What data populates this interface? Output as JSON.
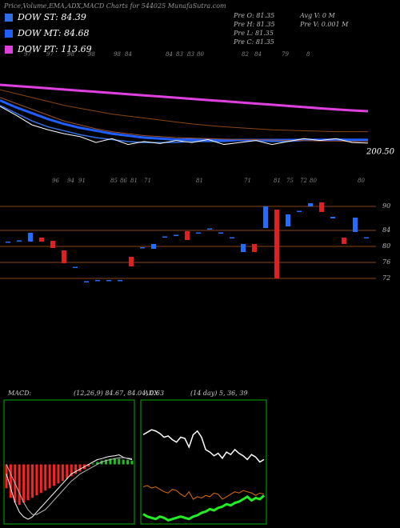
{
  "chart_data": [
    {
      "type": "line",
      "title": "Price,Volume,EMA,ADX,MACD Charts for 544025 MunafaSutra.com",
      "ylim": [
        60,
        150
      ],
      "series": [
        {
          "name": "DOW ST: 84.39",
          "color": "#2e6fe8",
          "width": 1.5,
          "values": [
            120,
            112,
            104,
            98,
            94,
            90,
            87,
            85,
            83,
            82,
            82,
            82,
            83,
            83,
            83,
            84,
            84,
            83,
            83,
            84,
            84,
            85,
            84,
            84.4
          ]
        },
        {
          "name": "DOW MT: 84.68",
          "color": "#1f5fff",
          "width": 3,
          "values": [
            125,
            118,
            112,
            106,
            101,
            97,
            94,
            91,
            89,
            87,
            86,
            85,
            85,
            84.5,
            84.5,
            84.5,
            84.5,
            84.5,
            84.5,
            84.7,
            84.8,
            84.9,
            84.8,
            84.7
          ]
        },
        {
          "name": "DOW PT: 113.69",
          "color": "#e040e0",
          "width": 3,
          "values": [
            141,
            139.8,
            138.6,
            137.4,
            136.2,
            135,
            133.8,
            132.6,
            131.4,
            130.2,
            129,
            127.8,
            126.6,
            125.4,
            124.2,
            123,
            121.8,
            120.6,
            119.4,
            118.2,
            117,
            115.8,
            114.8,
            114
          ]
        },
        {
          "color": "#8b4513",
          "width": 1,
          "values": [
            136,
            132,
            128,
            124,
            120,
            117,
            114,
            111,
            109,
            107,
            105,
            103,
            101,
            99.5,
            98,
            97,
            96,
            95,
            94.5,
            94,
            93.5,
            93,
            93,
            93
          ]
        },
        {
          "color": "#a0522d",
          "width": 1,
          "values": [
            128,
            122,
            116,
            110,
            104,
            100,
            96,
            93,
            91,
            89,
            88,
            87,
            86.5,
            86,
            85.5,
            85,
            85,
            84.5,
            84,
            84,
            83.5,
            83.5,
            83,
            83
          ]
        },
        {
          "color": "#ffffff",
          "width": 1,
          "values": [
            119,
            110,
            100,
            95,
            91,
            88,
            82,
            86,
            80,
            83,
            81,
            84,
            82,
            85,
            80,
            82,
            84,
            80,
            83,
            86,
            84,
            86,
            82,
            81.35
          ]
        }
      ],
      "info": [
        "Pre O: 81.35",
        "Pre H: 81.35",
        "Pre L: 81.35",
        "Pre C: 81.35",
        "Avg V: 0 M",
        "Pre V: 0.001 M"
      ],
      "price_label": "200.50",
      "date_labels": [
        "97",
        "97",
        "98",
        "98",
        "98",
        "84",
        "84",
        "83",
        "83",
        "80",
        "82",
        "84",
        "79",
        "8"
      ]
    },
    {
      "type": "candlestick",
      "up_color": "#1e6fff",
      "down_color": "#e02020",
      "grid": true,
      "grid_color": "#8b4513",
      "ylim": [
        68.6,
        95.2
      ],
      "yticks": [
        72,
        76,
        80,
        84,
        90
      ],
      "open": [
        81.2,
        81.2,
        81.2,
        82.2,
        81.4,
        79,
        74.8,
        71.2,
        71.6,
        71.6,
        71.6,
        77.4,
        79.6,
        79.4,
        82.3,
        82.7,
        83.8,
        83.3,
        84.3,
        83.3,
        82.1,
        78.6,
        80.6,
        84.6,
        89.2,
        85,
        88.7,
        90,
        91,
        87,
        82.2,
        83.6,
        82
      ],
      "close": [
        81.2,
        81.5,
        83.4,
        81.2,
        79.6,
        75.8,
        74.9,
        71.3,
        71.6,
        71.6,
        71.6,
        75,
        79.8,
        80.6,
        82.5,
        82.9,
        81.6,
        83.5,
        84.5,
        83.5,
        82.3,
        80.6,
        78.6,
        90,
        72,
        88,
        88.9,
        90.8,
        88.6,
        87.4,
        80.6,
        87.2,
        82.3
      ],
      "date_labels": [
        "96",
        "94",
        "91",
        "85",
        "86",
        "81",
        "71",
        "81",
        "71",
        "81",
        "75",
        "72",
        "80",
        "80"
      ]
    },
    {
      "type": "macd",
      "title": "MACD:",
      "subtitle": "(12,26,9) 84.67, 84.04, 0.63",
      "ylim": [
        -1.25,
        1.35
      ],
      "pos_color": "#20c020",
      "neg_color": "#ff2020",
      "histogram": [
        -0.5,
        -0.7,
        -0.8,
        -0.85,
        -0.8,
        -0.75,
        -0.7,
        -0.65,
        -0.6,
        -0.55,
        -0.5,
        -0.45,
        -0.4,
        -0.35,
        -0.3,
        -0.25,
        -0.2,
        -0.15,
        -0.1,
        -0.05,
        0.02,
        0.05,
        0.08,
        0.1,
        0.12,
        0.13,
        0.12,
        0.1,
        0.09,
        0.08
      ],
      "series": [
        {
          "color": "#ffffff",
          "values": [
            -0.2,
            -0.5,
            -0.8,
            -1,
            -1.1,
            -1.15,
            -1.1,
            -1,
            -0.9,
            -0.8,
            -0.7,
            -0.6,
            -0.5,
            -0.4,
            -0.3,
            -0.2,
            -0.15,
            -0.1,
            -0.05,
            0,
            0.05,
            0.1,
            0.12,
            0.15,
            0.17,
            0.18,
            0.2,
            0.15,
            0.12,
            0.1
          ]
        },
        {
          "color": "#bbbbbb",
          "values": [
            0,
            -0.2,
            -0.4,
            -0.6,
            -0.8,
            -0.95,
            -1.05,
            -1.05,
            -1,
            -0.95,
            -0.85,
            -0.75,
            -0.65,
            -0.55,
            -0.45,
            -0.35,
            -0.28,
            -0.2,
            -0.15,
            -0.1,
            -0.05,
            0,
            0.05,
            0.08,
            0.1,
            0.12,
            0.14,
            0.14,
            0.13,
            0.12
          ]
        }
      ]
    },
    {
      "type": "adx",
      "title": "ADX",
      "subtitle": "(14 day) 5, 36, 39",
      "ylim": [
        0,
        100
      ],
      "series": [
        {
          "color": "#ffffff",
          "width": 1.5,
          "values": [
            72,
            74,
            76,
            75,
            73,
            70,
            71,
            68,
            66,
            70,
            69,
            62,
            72,
            75,
            70,
            60,
            58,
            55,
            57,
            53,
            58,
            56,
            60,
            57,
            55,
            52,
            56,
            54,
            50,
            52
          ]
        },
        {
          "color": "#e07000",
          "width": 1,
          "values": [
            30,
            31,
            29,
            30,
            28,
            26,
            25,
            28,
            27,
            24,
            22,
            26,
            20,
            22,
            21,
            23,
            22,
            25,
            24,
            20,
            22,
            24,
            26,
            25,
            27,
            26,
            25,
            23,
            25,
            24
          ]
        },
        {
          "color": "#22ee22",
          "width": 3,
          "values": [
            8,
            6,
            5,
            4,
            6,
            5,
            3,
            4,
            5,
            6,
            5,
            4,
            6,
            7,
            9,
            10,
            12,
            11,
            13,
            14,
            16,
            15,
            17,
            18,
            20,
            22,
            19,
            21,
            20,
            23
          ]
        }
      ]
    }
  ]
}
